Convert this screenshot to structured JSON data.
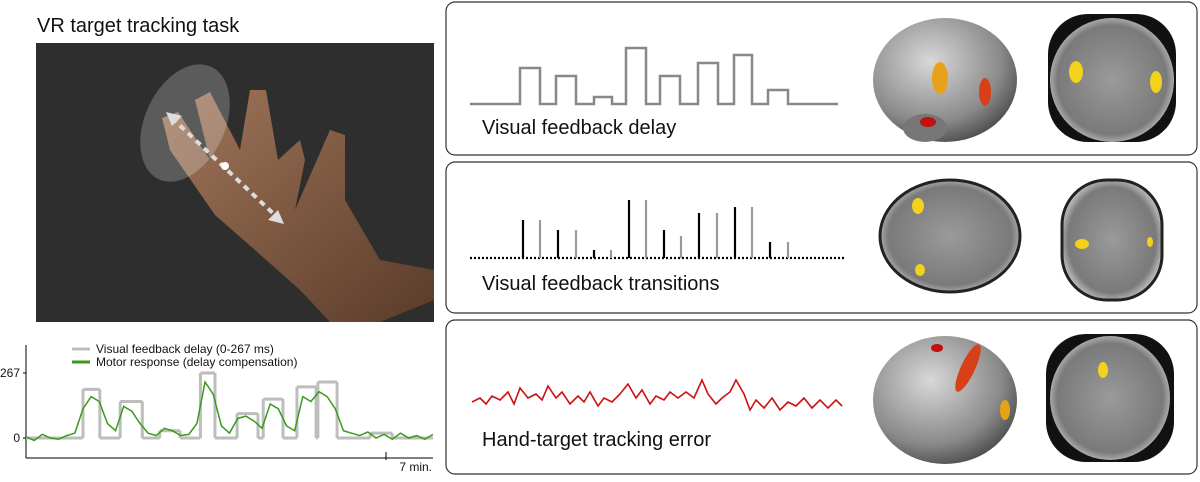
{
  "title": "VR target tracking task",
  "panels": [
    {
      "label": "Visual feedback delay"
    },
    {
      "label": "Visual feedback transitions"
    },
    {
      "label": "Hand-target tracking error"
    }
  ],
  "chart_data": {
    "type": "line",
    "x_label": "7 min.",
    "xlim": [
      0,
      7
    ],
    "ylim": [
      -82,
      382
    ],
    "yticks": [
      0,
      267
    ],
    "series": [
      {
        "name": "Visual feedback delay (0-267 ms)",
        "color": "#bdbdbd",
        "step": true,
        "x": [
          0,
          0.98,
          1.27,
          1.62,
          2.0,
          2.3,
          2.65,
          3.0,
          3.25,
          3.63,
          3.99,
          4.08,
          4.42,
          4.66,
          4.99,
          5.02,
          5.35,
          5.92,
          6.3
        ],
        "values": [
          0,
          200,
          0,
          150,
          0,
          30,
          0,
          267,
          0,
          100,
          0,
          160,
          0,
          210,
          0,
          230,
          0,
          20,
          0
        ]
      },
      {
        "name": "Motor response (delay compensation)",
        "color": "#3a9a1a",
        "x": [
          0,
          0.14,
          0.28,
          0.42,
          0.56,
          0.7,
          0.84,
          0.98,
          1.12,
          1.26,
          1.4,
          1.54,
          1.68,
          1.82,
          1.96,
          2.1,
          2.24,
          2.38,
          2.52,
          2.66,
          2.8,
          2.94,
          3.08,
          3.22,
          3.36,
          3.5,
          3.64,
          3.78,
          3.92,
          4.06,
          4.2,
          4.34,
          4.48,
          4.62,
          4.76,
          4.9,
          5.04,
          5.18,
          5.32,
          5.46,
          5.6,
          5.74,
          5.88,
          6.02,
          6.16,
          6.3,
          6.44,
          6.58,
          6.72,
          6.86,
          7.0
        ],
        "values": [
          5,
          -10,
          15,
          0,
          -5,
          10,
          20,
          120,
          170,
          150,
          60,
          30,
          130,
          110,
          60,
          20,
          10,
          40,
          30,
          10,
          15,
          60,
          230,
          180,
          50,
          20,
          80,
          90,
          70,
          40,
          140,
          120,
          50,
          30,
          170,
          150,
          190,
          170,
          120,
          30,
          20,
          10,
          25,
          0,
          15,
          -5,
          20,
          0,
          10,
          -5,
          15
        ]
      }
    ]
  }
}
